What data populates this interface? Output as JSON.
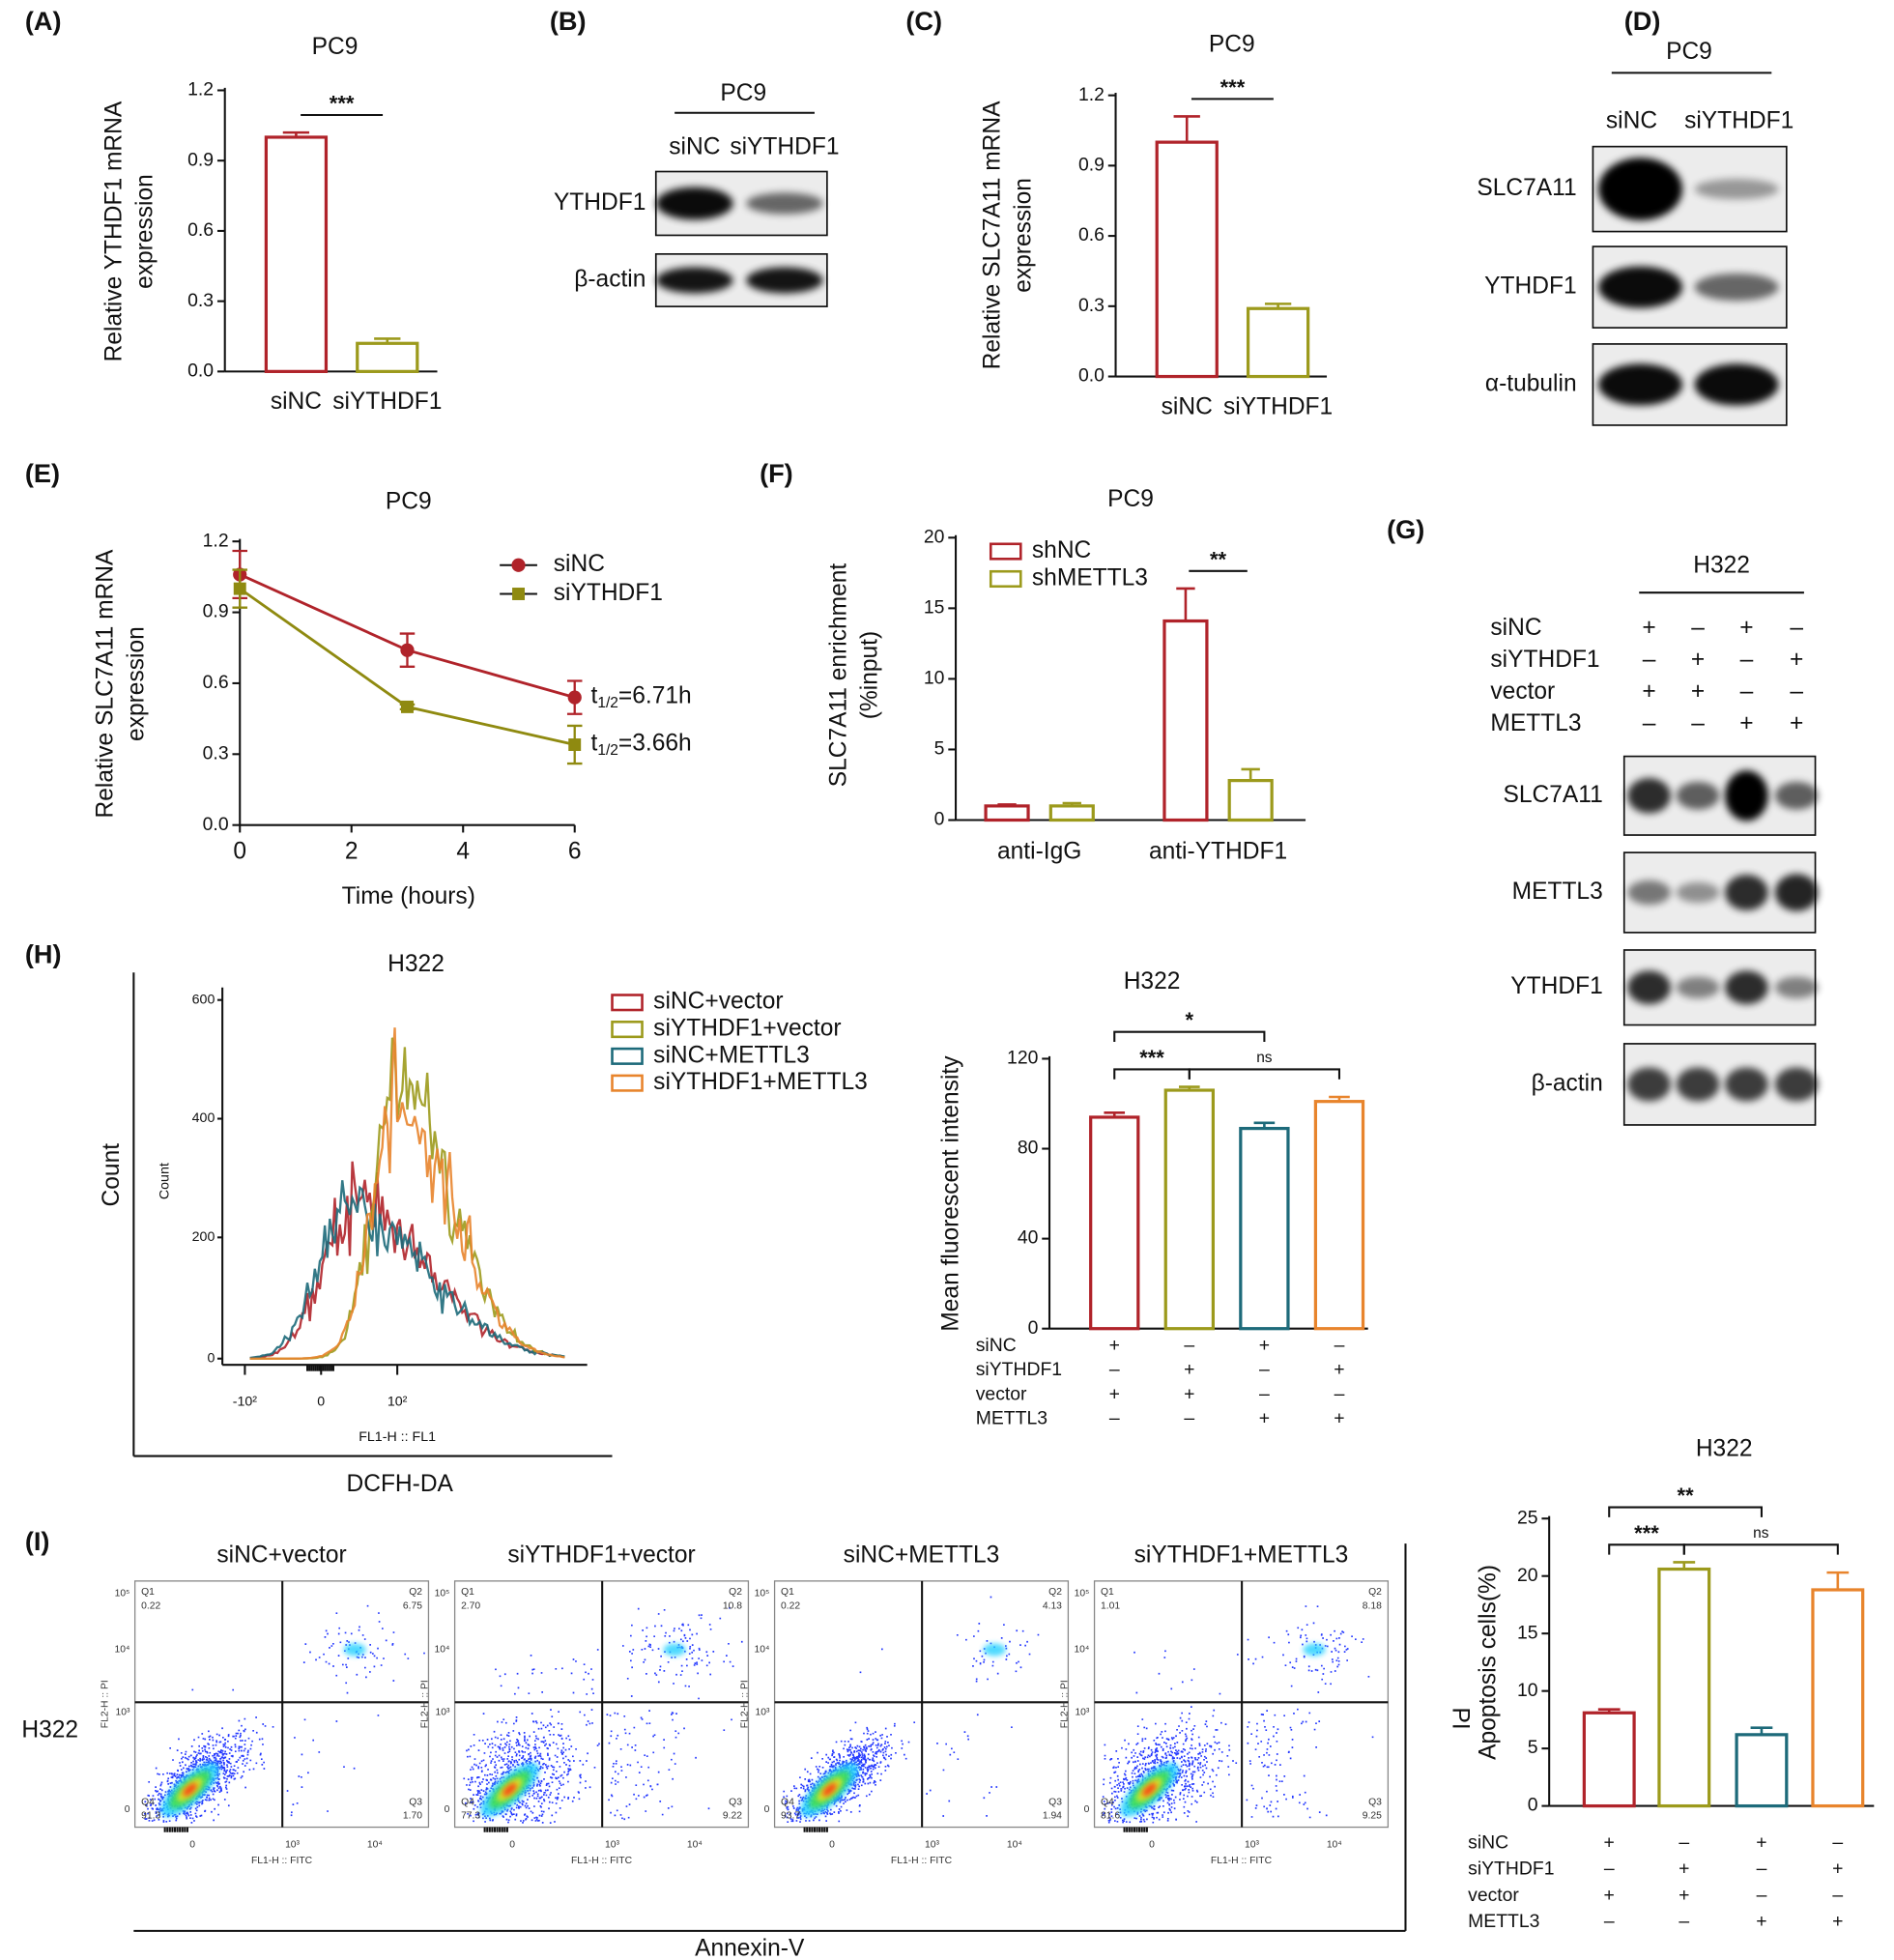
{
  "chart_data": [
    {
      "type": "bar",
      "panel": "(A)",
      "title": "PC9",
      "ylabel": [
        "Relative YTHDF1 mRNA",
        "expression"
      ],
      "categories": [
        "siNC",
        "siYTHDF1"
      ],
      "values": [
        1.0,
        0.12
      ],
      "errors": [
        0.02,
        0.02
      ],
      "colors": [
        "#b0232a",
        "#9c9a1c"
      ],
      "ylim": [
        0,
        1.2
      ],
      "yticks": [
        {
          "value": 0,
          "label": "0.0"
        },
        0.3,
        0.6,
        0.9,
        1.2
      ],
      "significance": [
        {
          "text": "***",
          "between": [
            0,
            1
          ]
        }
      ]
    },
    {
      "type": "bar",
      "panel": "(C)",
      "title": "PC9",
      "ylabel": [
        "Relative SLC7A11 mRNA",
        "expression"
      ],
      "categories": [
        "siNC",
        "siYTHDF1"
      ],
      "values": [
        1.0,
        0.29
      ],
      "errors": [
        0.11,
        0.02
      ],
      "colors": [
        "#b0232a",
        "#9c9a1c"
      ],
      "ylim": [
        0,
        1.2
      ],
      "yticks": [
        {
          "value": 0,
          "label": "0.0"
        },
        0.3,
        0.6,
        0.9,
        1.2
      ],
      "significance": [
        {
          "text": "***",
          "between": [
            0,
            1
          ]
        }
      ]
    },
    {
      "type": "line",
      "panel": "(E)",
      "title": "PC9",
      "xlabel": "Time (hours)",
      "ylabel": [
        "Relative SLC7A11 mRNA",
        "expression"
      ],
      "x": [
        0,
        3,
        6
      ],
      "xlim": [
        0,
        6
      ],
      "xticks": [
        0,
        2,
        4,
        6
      ],
      "ylim": [
        0,
        1.2
      ],
      "yticks": [
        {
          "value": 0,
          "label": "0.0"
        },
        0.3,
        0.6,
        0.9,
        1.2
      ],
      "legend": "upper right",
      "series": [
        {
          "name": "siNC",
          "color": "#b0232a",
          "marker": "circle",
          "values": [
            1.06,
            0.74,
            0.54
          ],
          "errors": [
            0.1,
            0.07,
            0.07
          ],
          "half_life": {
            "symbol": "t",
            "sub": "1/2",
            "text": "=6.71h"
          }
        },
        {
          "name": "siYTHDF1",
          "color": "#8f8a10",
          "marker": "square",
          "values": [
            1.0,
            0.5,
            0.34
          ],
          "errors": [
            0.08,
            0.01,
            0.08
          ],
          "half_life": {
            "symbol": "t",
            "sub": "1/2",
            "text": "=3.66h"
          }
        }
      ]
    },
    {
      "type": "bar",
      "panel": "(F)",
      "title": "PC9",
      "ylabel": [
        "SLC7A11 enrichment",
        "(%input)"
      ],
      "categories": [
        "anti-IgG",
        "anti-YTHDF1"
      ],
      "series": [
        {
          "name": "shNC",
          "color": "#b0232a",
          "values": [
            1.0,
            14.1
          ],
          "errors": [
            0.1,
            2.3
          ]
        },
        {
          "name": "shMETTL3",
          "color": "#9c9a1c",
          "values": [
            1.0,
            2.8
          ],
          "errors": [
            0.2,
            0.8
          ]
        }
      ],
      "ylim": [
        0,
        20
      ],
      "yticks": [
        0,
        5,
        10,
        15,
        20
      ],
      "legend": "upper left",
      "significance": [
        {
          "text": "**",
          "category": 1
        }
      ]
    },
    {
      "type": "bar",
      "title": "H322",
      "ylabel": [
        "Mean fluorescent intensity"
      ],
      "values": [
        94,
        106,
        89,
        101
      ],
      "errors": [
        2,
        1.5,
        2.5,
        2
      ],
      "colors": [
        "#b0232a",
        "#9c9a1c",
        "#1d6a7a",
        "#e8842c"
      ],
      "ylim": [
        0,
        120
      ],
      "yticks": [
        0,
        40,
        80,
        120
      ],
      "conditions": [
        {
          "name": "siNC",
          "signs": [
            "+",
            "–",
            "+",
            "–"
          ]
        },
        {
          "name": "siYTHDF1",
          "signs": [
            "–",
            "+",
            "–",
            "+"
          ]
        },
        {
          "name": "vector",
          "signs": [
            "+",
            "+",
            "–",
            "–"
          ]
        },
        {
          "name": "METTL3",
          "signs": [
            "–",
            "–",
            "+",
            "+"
          ]
        }
      ],
      "significance": [
        {
          "text": "***",
          "between": [
            0,
            1
          ]
        },
        {
          "text": "*",
          "between": [
            0,
            2
          ]
        },
        {
          "text": "ns",
          "between": [
            1,
            3
          ]
        }
      ]
    },
    {
      "type": "bar",
      "title": "H322",
      "ylabel": [
        "Apoptosis cells(%)"
      ],
      "side_label": "PI",
      "values": [
        8.1,
        20.6,
        6.2,
        18.8
      ],
      "errors": [
        0.3,
        0.6,
        0.6,
        1.5
      ],
      "colors": [
        "#b0232a",
        "#9c9a1c",
        "#1d6a7a",
        "#e8842c"
      ],
      "ylim": [
        0,
        25
      ],
      "yticks": [
        0,
        5,
        10,
        15,
        20,
        25
      ],
      "conditions": [
        {
          "name": "siNC",
          "signs": [
            "+",
            "–",
            "+",
            "–"
          ]
        },
        {
          "name": "siYTHDF1",
          "signs": [
            "–",
            "+",
            "–",
            "+"
          ]
        },
        {
          "name": "vector",
          "signs": [
            "+",
            "+",
            "–",
            "–"
          ]
        },
        {
          "name": "METTL3",
          "signs": [
            "–",
            "–",
            "+",
            "+"
          ]
        }
      ],
      "significance": [
        {
          "text": "***",
          "between": [
            0,
            1
          ]
        },
        {
          "text": "**",
          "between": [
            0,
            2
          ]
        },
        {
          "text": "ns",
          "between": [
            1,
            3
          ]
        }
      ]
    }
  ],
  "blots": [
    {
      "panel": "(B)",
      "header": "PC9",
      "lanes": [
        "siNC",
        "siYTHDF1"
      ],
      "rows": [
        "YTHDF1",
        "β-actin"
      ]
    },
    {
      "panel": "(D)",
      "header": "PC9",
      "lanes": [
        "siNC",
        "siYTHDF1"
      ],
      "rows": [
        "SLC7A11",
        "YTHDF1",
        "α-tubulin"
      ]
    },
    {
      "panel": "(G)",
      "header": "H322",
      "conditions": [
        {
          "name": "siNC",
          "signs": [
            "+",
            "–",
            "+",
            "–"
          ]
        },
        {
          "name": "siYTHDF1",
          "signs": [
            "–",
            "+",
            "–",
            "+"
          ]
        },
        {
          "name": "vector",
          "signs": [
            "+",
            "+",
            "–",
            "–"
          ]
        },
        {
          "name": "METTL3",
          "signs": [
            "–",
            "–",
            "+",
            "+"
          ]
        }
      ],
      "rows": [
        "SLC7A11",
        "METTL3",
        "YTHDF1",
        "β-actin"
      ]
    }
  ],
  "flow_histogram": {
    "panel": "(H)",
    "title": "H322",
    "ylabel": "Count",
    "xlabel": "DCFH-DA",
    "inner_ylabel": "Count",
    "inner_xlabel": "FL1-H :: FL1",
    "yticks": [
      "600",
      "400",
      "200",
      "0"
    ],
    "xticks": [
      "-10²",
      "0",
      "10²"
    ],
    "legend": [
      {
        "name": "siNC+vector",
        "color": "#b0232a"
      },
      {
        "name": "siYTHDF1+vector",
        "color": "#9c9a1c"
      },
      {
        "name": "siNC+METTL3",
        "color": "#1d6a7a"
      },
      {
        "name": "siYTHDF1+METTL3",
        "color": "#e8842c"
      }
    ]
  },
  "flow_scatter": {
    "panel": "(I)",
    "row_label": "H322",
    "xlabel": "Annexin-V",
    "axis_x": "FL1-H :: FITC",
    "axis_y": "FL2-H :: PI",
    "xticks": [
      "0",
      "10³",
      "10⁴"
    ],
    "yticks": [
      "10⁵",
      "10⁴",
      "10³",
      "0"
    ],
    "quadrant_names": [
      "Q1",
      "Q2",
      "Q3",
      "Q4"
    ],
    "plots": [
      {
        "title": "siNC+vector",
        "quadrants": [
          "0.22",
          "6.75",
          "1.70",
          "91.3"
        ]
      },
      {
        "title": "siYTHDF1+vector",
        "quadrants": [
          "2.70",
          "10.8",
          "9.22",
          "77.3"
        ]
      },
      {
        "title": "siNC+METTL3",
        "quadrants": [
          "0.22",
          "4.13",
          "1.94",
          "93.7"
        ]
      },
      {
        "title": "siYTHDF1+METTL3",
        "quadrants": [
          "1.01",
          "8.18",
          "9.25",
          "81.6"
        ]
      }
    ]
  }
}
